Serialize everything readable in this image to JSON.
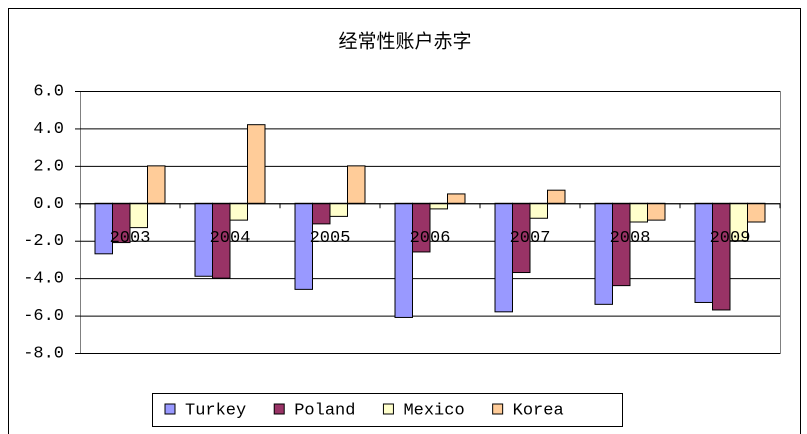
{
  "chart_data": {
    "type": "bar",
    "title": "经常性账户赤字",
    "categories": [
      "2003",
      "2004",
      "2005",
      "2006",
      "2007",
      "2008",
      "2009"
    ],
    "series": [
      {
        "name": "Turkey",
        "color": "#9999ff",
        "values": [
          -2.7,
          -3.9,
          -4.6,
          -6.1,
          -5.8,
          -5.4,
          -5.3
        ]
      },
      {
        "name": "Poland",
        "color": "#993366",
        "values": [
          -2.1,
          -4.0,
          -1.1,
          -2.6,
          -3.7,
          -4.4,
          -5.7
        ]
      },
      {
        "name": "Mexico",
        "color": "#ffffcc",
        "values": [
          -1.3,
          -0.9,
          -0.7,
          -0.3,
          -0.8,
          -1.0,
          -2.0
        ]
      },
      {
        "name": "Korea",
        "color": "#ffcc99",
        "values": [
          2.0,
          4.2,
          2.0,
          0.5,
          0.7,
          -0.9,
          -1.0
        ]
      }
    ],
    "ylim": [
      -8,
      6
    ],
    "yticks": [
      {
        "value": -8,
        "label": "-8.0"
      },
      {
        "value": -6,
        "label": "-6.0"
      },
      {
        "value": -4,
        "label": "-4.0"
      },
      {
        "value": -2,
        "label": "-2.0"
      },
      {
        "value": 0,
        "label": "0.0"
      },
      {
        "value": 2,
        "label": "2.0"
      },
      {
        "value": 4,
        "label": "4.0"
      },
      {
        "value": 6,
        "label": "6.0"
      }
    ],
    "grid": true,
    "legend": "bottom"
  }
}
